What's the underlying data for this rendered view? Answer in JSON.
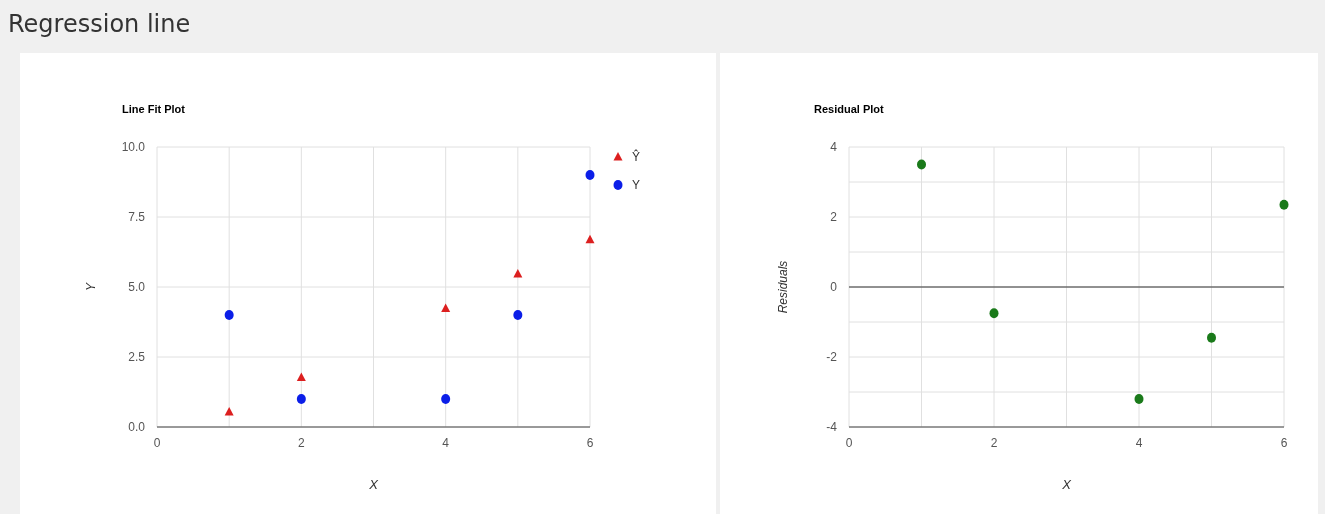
{
  "chart_data": [
    {
      "type": "scatter",
      "title": "Line Fit Plot",
      "annotations": [
        "Regression line"
      ],
      "xlabel": "X",
      "ylabel": "Y",
      "x": [
        1,
        2,
        4,
        5,
        6
      ],
      "series": [
        {
          "name": "Ŷ",
          "color": "#dc1f1f",
          "marker": "triangle",
          "values": [
            0.54,
            1.77,
            4.23,
            5.46,
            6.69
          ]
        },
        {
          "name": "Y",
          "color": "#0b1ee8",
          "marker": "circle",
          "values": [
            4,
            1,
            1,
            4,
            9
          ]
        }
      ],
      "xlim": [
        0,
        6
      ],
      "xticks": [
        0,
        {
          "value": 1,
          "label": null
        },
        2,
        {
          "value": 3,
          "label": null
        },
        4,
        {
          "value": 5,
          "label": null
        },
        6
      ],
      "ylim": [
        0,
        10
      ],
      "yticks": [
        {
          "value": 0,
          "label": "0.0"
        },
        2.5,
        {
          "value": 5,
          "label": "5.0"
        },
        7.5,
        {
          "value": 10,
          "label": "10.0"
        }
      ],
      "grid": true,
      "legend": "right"
    },
    {
      "type": "scatter",
      "title": "Residual Plot",
      "xlabel": "X",
      "ylabel": "Residuals",
      "x": [
        1,
        2,
        4,
        5,
        6
      ],
      "series": [
        {
          "color": "#1a7a1a",
          "marker": "circle",
          "values": [
            3.5,
            -0.75,
            -3.2,
            -1.45,
            2.35
          ]
        }
      ],
      "xlim": [
        0,
        6
      ],
      "xticks": [
        0,
        {
          "value": 1,
          "label": null
        },
        2,
        {
          "value": 3,
          "label": null
        },
        4,
        {
          "value": 5,
          "label": null
        },
        6
      ],
      "ylim": [
        -4,
        4
      ],
      "yticks": [
        -4,
        {
          "value": -3,
          "label": null
        },
        -2,
        {
          "value": -1,
          "label": null
        },
        0,
        {
          "value": 1,
          "label": null
        },
        2,
        {
          "value": 3,
          "label": null
        },
        4
      ],
      "grid": true,
      "ref_lines": [
        {
          "axis": "y",
          "value": 0,
          "color": "#333333"
        }
      ]
    }
  ]
}
